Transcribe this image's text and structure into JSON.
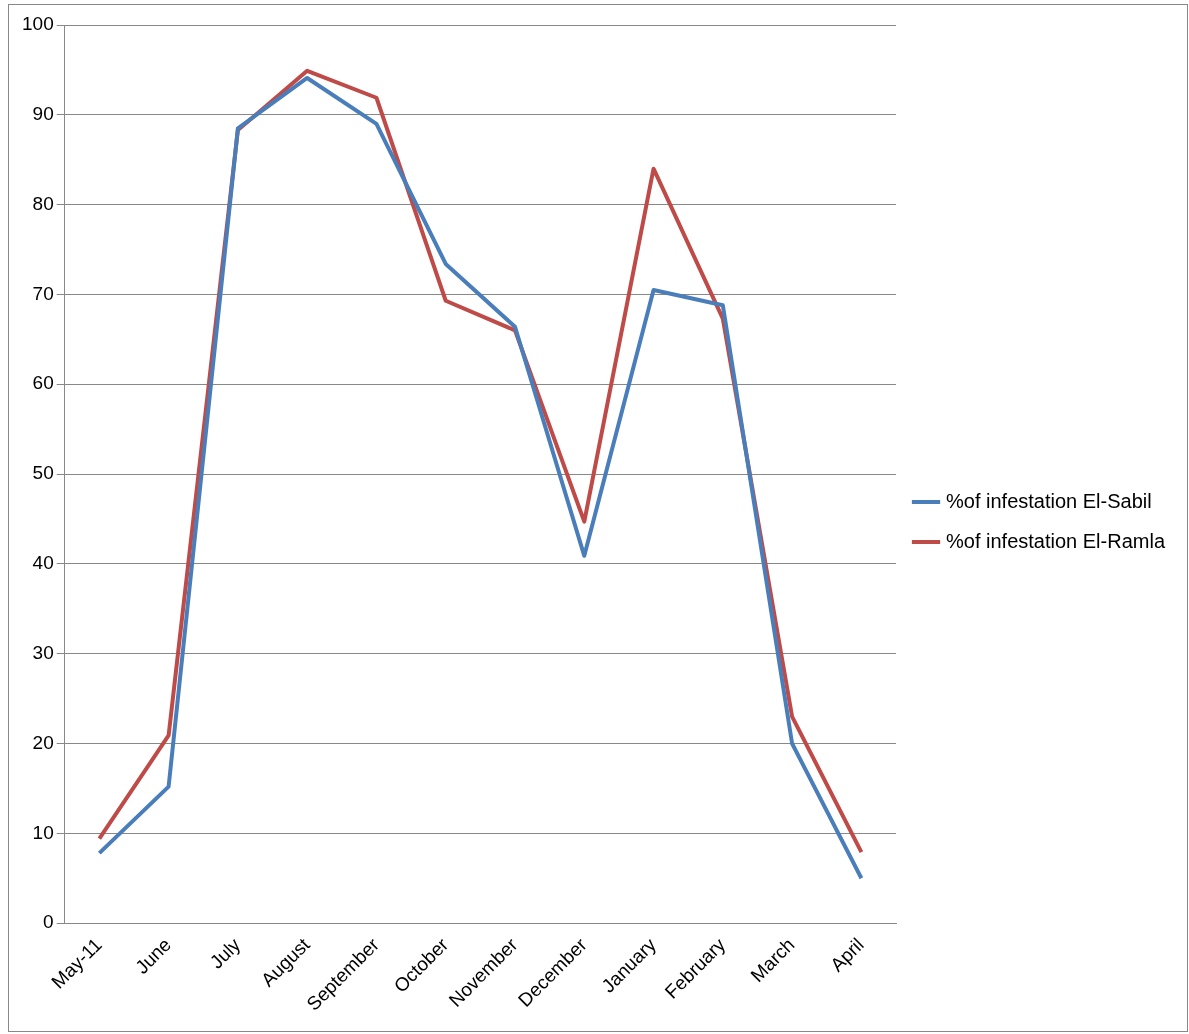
{
  "chart_data": {
    "type": "line",
    "categories": [
      "May-11",
      "June",
      "July",
      "August",
      "September",
      "October",
      "November",
      "December",
      "January",
      "February",
      "March",
      "April"
    ],
    "series": [
      {
        "name": "%of infestation El-Sabil",
        "color": "#4a7ebb",
        "values": [
          7.8,
          15.2,
          88.5,
          94.1,
          89,
          73.4,
          66.4,
          40.9,
          70.5,
          68.8,
          20,
          5
        ]
      },
      {
        "name": "%of infestation El-Ramla",
        "color": "#be4b48",
        "values": [
          9.4,
          20.9,
          88.3,
          94.9,
          91.9,
          69.3,
          66,
          44.7,
          84,
          67.3,
          23,
          7.9
        ]
      }
    ],
    "ylim": [
      0,
      100
    ],
    "yticks": [
      0,
      10,
      20,
      30,
      40,
      50,
      60,
      70,
      80,
      90,
      100
    ],
    "grid": "y",
    "legend": "right",
    "marker": "none",
    "line_style": "solid"
  }
}
